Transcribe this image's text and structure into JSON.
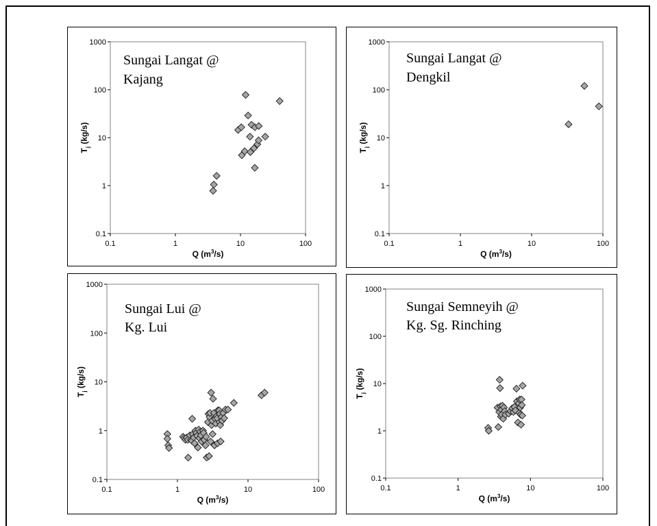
{
  "chart_data": [
    {
      "type": "scatter",
      "title": [
        "Sungai Langat @",
        "Kajang"
      ],
      "xlabel": {
        "base": "Q (m",
        "sup": "3",
        "tail": "/s)"
      },
      "ylabel": {
        "base": "T",
        "sub": "j",
        "tail": " (kg/s)"
      },
      "x_scale": "log",
      "y_scale": "log",
      "xlim": [
        0.1,
        100
      ],
      "ylim": [
        0.1,
        1000
      ],
      "x_ticks": [
        "0.1",
        "1",
        "10",
        "100"
      ],
      "y_ticks": [
        "0.1",
        "1",
        "10",
        "100",
        "1000"
      ],
      "grid": false,
      "marker": "diamond",
      "color": "#a6a6a6",
      "points": [
        [
          3.8,
          0.78
        ],
        [
          3.9,
          1.05
        ],
        [
          4.3,
          1.6
        ],
        [
          9.2,
          14.5
        ],
        [
          10.3,
          16.5
        ],
        [
          10.5,
          4.3
        ],
        [
          11.6,
          5.2
        ],
        [
          12.0,
          78
        ],
        [
          13.1,
          29
        ],
        [
          14.0,
          10.5
        ],
        [
          14.2,
          5.0
        ],
        [
          14.8,
          18.5
        ],
        [
          16.1,
          6.0
        ],
        [
          16.6,
          2.35
        ],
        [
          16.7,
          16.5
        ],
        [
          18.2,
          7.3
        ],
        [
          19.0,
          8.8
        ],
        [
          19.1,
          17.5
        ],
        [
          24.0,
          10.5
        ],
        [
          40.0,
          58
        ]
      ]
    },
    {
      "type": "scatter",
      "title": [
        "Sungai Langat @",
        "Dengkil"
      ],
      "xlabel": {
        "base": "Q (m",
        "sup": "3",
        "tail": "/s)"
      },
      "ylabel": {
        "base": "T",
        "sub": "j",
        "tail": " (kg/s)"
      },
      "x_scale": "log",
      "y_scale": "log",
      "xlim": [
        0.1,
        100
      ],
      "ylim": [
        0.1,
        1000
      ],
      "x_ticks": [
        "0.1",
        "1",
        "10",
        "100"
      ],
      "y_ticks": [
        "0.1",
        "1",
        "10",
        "100",
        "1000"
      ],
      "grid": false,
      "marker": "diamond",
      "color": "#a6a6a6",
      "points": [
        [
          33,
          19
        ],
        [
          55,
          120
        ],
        [
          88,
          45
        ]
      ]
    },
    {
      "type": "scatter",
      "title": [
        "Sungai Lui @",
        "Kg. Lui"
      ],
      "xlabel": {
        "base": "Q (m",
        "sup": "3",
        "tail": "/s)"
      },
      "ylabel": {
        "base": "T",
        "sub": "j",
        "tail": " (kg/s)"
      },
      "x_scale": "log",
      "y_scale": "log",
      "xlim": [
        0.1,
        100
      ],
      "ylim": [
        0.1,
        1000
      ],
      "x_ticks": [
        "0.1",
        "1",
        "10",
        "100"
      ],
      "y_ticks": [
        "0.1",
        "1",
        "10",
        "100",
        "1000"
      ],
      "grid": false,
      "marker": "diamond",
      "color": "#a6a6a6",
      "points": [
        [
          0.72,
          0.85
        ],
        [
          0.72,
          0.68
        ],
        [
          0.74,
          0.5
        ],
        [
          0.76,
          0.44
        ],
        [
          1.2,
          0.75
        ],
        [
          1.25,
          0.7
        ],
        [
          1.3,
          0.65
        ],
        [
          1.35,
          0.72
        ],
        [
          1.4,
          0.65
        ],
        [
          1.42,
          0.28
        ],
        [
          1.5,
          0.8
        ],
        [
          1.55,
          0.65
        ],
        [
          1.6,
          0.62
        ],
        [
          1.62,
          1.75
        ],
        [
          1.65,
          0.85
        ],
        [
          1.7,
          0.72
        ],
        [
          1.75,
          0.55
        ],
        [
          1.8,
          1.0
        ],
        [
          1.85,
          0.9
        ],
        [
          1.9,
          0.78
        ],
        [
          1.95,
          0.45
        ],
        [
          2.0,
          1.05
        ],
        [
          2.05,
          0.7
        ],
        [
          2.1,
          0.95
        ],
        [
          2.15,
          0.8
        ],
        [
          2.2,
          0.6
        ],
        [
          2.3,
          1.0
        ],
        [
          2.35,
          0.9
        ],
        [
          2.4,
          0.65
        ],
        [
          2.5,
          0.5
        ],
        [
          2.55,
          0.75
        ],
        [
          2.6,
          0.28
        ],
        [
          2.7,
          1.5
        ],
        [
          2.75,
          2.2
        ],
        [
          2.8,
          0.3
        ],
        [
          2.85,
          1.9
        ],
        [
          2.9,
          2.3
        ],
        [
          2.95,
          0.6
        ],
        [
          3.0,
          6.0
        ],
        [
          3.05,
          1.3
        ],
        [
          3.1,
          1.6
        ],
        [
          3.15,
          0.85
        ],
        [
          3.2,
          4.5
        ],
        [
          3.3,
          2.3
        ],
        [
          3.35,
          0.5
        ],
        [
          3.4,
          1.75
        ],
        [
          3.5,
          1.4
        ],
        [
          3.6,
          2.0
        ],
        [
          3.65,
          1.8
        ],
        [
          3.7,
          0.55
        ],
        [
          3.75,
          2.6
        ],
        [
          3.9,
          2.6
        ],
        [
          3.95,
          1.5
        ],
        [
          4.0,
          2.2
        ],
        [
          4.05,
          1.3
        ],
        [
          4.1,
          0.6
        ],
        [
          4.2,
          1.9
        ],
        [
          4.3,
          1.6
        ],
        [
          4.45,
          2.3
        ],
        [
          4.6,
          1.8
        ],
        [
          4.8,
          2.7
        ],
        [
          5.2,
          2.7
        ],
        [
          6.3,
          3.7
        ],
        [
          15.5,
          5.3
        ],
        [
          17.2,
          6.0
        ]
      ]
    },
    {
      "type": "scatter",
      "title": [
        "Sungai Semneyih @",
        "Kg. Sg. Rinching"
      ],
      "xlabel": {
        "base": "Q (m",
        "sup": "3",
        "tail": "/s)"
      },
      "ylabel": {
        "base": "T",
        "sub": "j",
        "tail": " (kg/s)"
      },
      "x_scale": "log",
      "y_scale": "log",
      "xlim": [
        0.1,
        100
      ],
      "ylim": [
        0.1,
        1000
      ],
      "x_ticks": [
        "0.1",
        "1",
        "10",
        "100"
      ],
      "y_ticks": [
        "0.1",
        "1",
        "10",
        "100",
        "1000"
      ],
      "grid": false,
      "marker": "diamond",
      "color": "#a6a6a6",
      "points": [
        [
          2.6,
          1.15
        ],
        [
          2.65,
          1.0
        ],
        [
          3.5,
          3.1
        ],
        [
          3.6,
          1.2
        ],
        [
          3.7,
          2.5
        ],
        [
          3.75,
          12.0
        ],
        [
          3.8,
          8.0
        ],
        [
          3.85,
          3.3
        ],
        [
          3.9,
          2.0
        ],
        [
          3.95,
          2.8
        ],
        [
          4.0,
          2.2
        ],
        [
          4.1,
          3.4
        ],
        [
          4.2,
          1.8
        ],
        [
          4.3,
          3.1
        ],
        [
          4.4,
          2.6
        ],
        [
          4.5,
          2.2
        ],
        [
          5.0,
          2.3
        ],
        [
          5.3,
          2.6
        ],
        [
          5.6,
          3.0
        ],
        [
          5.8,
          2.5
        ],
        [
          6.0,
          3.2
        ],
        [
          6.2,
          2.7
        ],
        [
          6.4,
          7.8
        ],
        [
          6.5,
          4.2
        ],
        [
          6.7,
          1.5
        ],
        [
          6.9,
          3.8
        ],
        [
          7.0,
          2.4
        ],
        [
          7.1,
          4.6
        ],
        [
          7.2,
          3.1
        ],
        [
          7.3,
          2.2
        ],
        [
          7.4,
          1.35
        ],
        [
          7.5,
          4.6
        ],
        [
          7.6,
          3.5
        ],
        [
          7.7,
          2.1
        ],
        [
          7.8,
          9.0
        ]
      ]
    }
  ]
}
